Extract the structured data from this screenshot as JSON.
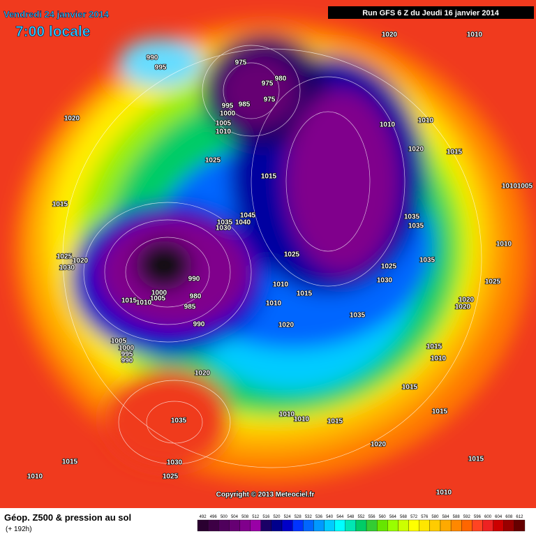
{
  "header": {
    "date": "Vendredi 24 janvier 2014",
    "time": "7:00 locale",
    "run": "Run GFS 6 Z du Jeudi 16 janvier 2014"
  },
  "copyright": "Copyright © 2013 Meteociel.fr",
  "footer": {
    "title": "Géop. Z500 & pression au sol",
    "lead": "(+ 192h)"
  },
  "scale": [
    {
      "label": "492",
      "color": "#2a0030"
    },
    {
      "label": "496",
      "color": "#3d0045"
    },
    {
      "label": "500",
      "color": "#4f005c"
    },
    {
      "label": "504",
      "color": "#660073"
    },
    {
      "label": "508",
      "color": "#80008c"
    },
    {
      "label": "512",
      "color": "#9900a6"
    },
    {
      "label": "516",
      "color": "#1a0066"
    },
    {
      "label": "520",
      "color": "#00008c"
    },
    {
      "label": "524",
      "color": "#0000c8"
    },
    {
      "label": "528",
      "color": "#0033ff"
    },
    {
      "label": "532",
      "color": "#0066ff"
    },
    {
      "label": "536",
      "color": "#0099ff"
    },
    {
      "label": "540",
      "color": "#00ccff"
    },
    {
      "label": "544",
      "color": "#00ffff"
    },
    {
      "label": "548",
      "color": "#00e6b3"
    },
    {
      "label": "552",
      "color": "#00cc66"
    },
    {
      "label": "556",
      "color": "#33cc33"
    },
    {
      "label": "560",
      "color": "#66e600"
    },
    {
      "label": "564",
      "color": "#99ff00"
    },
    {
      "label": "568",
      "color": "#ccff00"
    },
    {
      "label": "572",
      "color": "#ffff00"
    },
    {
      "label": "576",
      "color": "#ffe600"
    },
    {
      "label": "580",
      "color": "#ffcc00"
    },
    {
      "label": "584",
      "color": "#ffaa00"
    },
    {
      "label": "588",
      "color": "#ff8800"
    },
    {
      "label": "592",
      "color": "#ff6600"
    },
    {
      "label": "596",
      "color": "#ff4422"
    },
    {
      "label": "600",
      "color": "#ee2222"
    },
    {
      "label": "604",
      "color": "#cc0000"
    },
    {
      "label": "608",
      "color": "#990000"
    },
    {
      "label": "612",
      "color": "#660000"
    }
  ],
  "pressure_labels": [
    "990",
    "995",
    "1020",
    "1010",
    "975",
    "980",
    "975",
    "995",
    "985",
    "975",
    "1000",
    "1005",
    "1010",
    "1020",
    "1025",
    "1015",
    "1010",
    "1010",
    "1020",
    "1015",
    "1010",
    "1005",
    "1015",
    "1045",
    "1035",
    "1040",
    "1030",
    "1035",
    "1035",
    "1010",
    "1025",
    "1020",
    "1030",
    "1025",
    "1025",
    "1035",
    "1030",
    "990",
    "1010",
    "1015",
    "1010",
    "1000",
    "1005",
    "1010",
    "1015",
    "980",
    "985",
    "990",
    "1035",
    "1020",
    "1020",
    "1020",
    "1025",
    "1005",
    "1000",
    "995",
    "990",
    "1020",
    "1015",
    "1010",
    "1015",
    "1015",
    "1010",
    "1010",
    "1015",
    "1035",
    "1020",
    "1015",
    "1030",
    "1015",
    "1010",
    "1025",
    "1010"
  ]
}
